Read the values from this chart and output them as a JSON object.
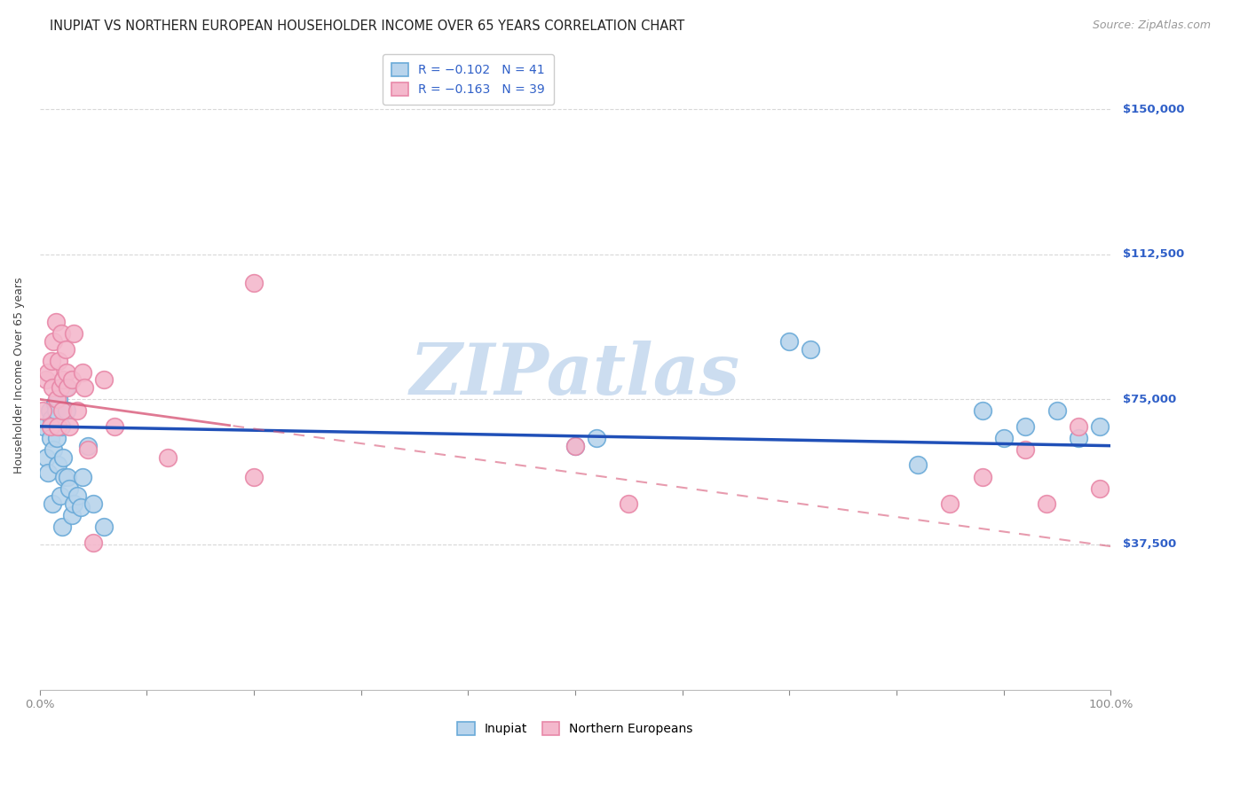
{
  "title": "INUPIAT VS NORTHERN EUROPEAN HOUSEHOLDER INCOME OVER 65 YEARS CORRELATION CHART",
  "source": "Source: ZipAtlas.com",
  "ylabel": "Householder Income Over 65 years",
  "xlim": [
    0,
    1.0
  ],
  "ylim": [
    0,
    162500
  ],
  "ytick_positions": [
    37500,
    75000,
    112500,
    150000
  ],
  "ytick_labels": [
    "$37,500",
    "$75,000",
    "$112,500",
    "$150,000"
  ],
  "inupiat_face_color": "#b8d4ec",
  "inupiat_edge_color": "#6aaad8",
  "northern_face_color": "#f4b8cc",
  "northern_edge_color": "#e888a8",
  "blue_line_color": "#2050b8",
  "pink_line_color": "#d85878",
  "grid_color": "#d8d8d8",
  "background_color": "#ffffff",
  "watermark": "ZIPatlas",
  "title_fontsize": 10.5,
  "source_fontsize": 9,
  "axis_label_fontsize": 9,
  "tick_fontsize": 9.5,
  "legend_fontsize": 10,
  "inupiat_x": [
    0.004,
    0.006,
    0.008,
    0.009,
    0.01,
    0.011,
    0.012,
    0.013,
    0.014,
    0.015,
    0.016,
    0.017,
    0.018,
    0.019,
    0.02,
    0.021,
    0.022,
    0.023,
    0.024,
    0.025,
    0.026,
    0.028,
    0.03,
    0.032,
    0.035,
    0.038,
    0.04,
    0.045,
    0.05,
    0.06,
    0.5,
    0.52,
    0.7,
    0.72,
    0.82,
    0.88,
    0.9,
    0.92,
    0.95,
    0.97,
    0.99
  ],
  "inupiat_y": [
    68000,
    60000,
    56000,
    72000,
    65000,
    70000,
    48000,
    62000,
    74000,
    72000,
    65000,
    58000,
    75000,
    50000,
    68000,
    42000,
    60000,
    55000,
    78000,
    72000,
    55000,
    52000,
    45000,
    48000,
    50000,
    47000,
    55000,
    63000,
    48000,
    42000,
    63000,
    65000,
    90000,
    88000,
    58000,
    72000,
    65000,
    68000,
    72000,
    65000,
    68000
  ],
  "northern_x": [
    0.003,
    0.006,
    0.008,
    0.01,
    0.011,
    0.012,
    0.013,
    0.015,
    0.016,
    0.017,
    0.018,
    0.019,
    0.02,
    0.021,
    0.022,
    0.024,
    0.025,
    0.026,
    0.028,
    0.03,
    0.032,
    0.035,
    0.04,
    0.042,
    0.045,
    0.05,
    0.06,
    0.07,
    0.12,
    0.2,
    0.5,
    0.55,
    0.2,
    0.85,
    0.88,
    0.92,
    0.94,
    0.97,
    0.99
  ],
  "northern_y": [
    72000,
    80000,
    82000,
    68000,
    85000,
    78000,
    90000,
    95000,
    75000,
    68000,
    85000,
    78000,
    92000,
    72000,
    80000,
    88000,
    82000,
    78000,
    68000,
    80000,
    92000,
    72000,
    82000,
    78000,
    62000,
    38000,
    80000,
    68000,
    60000,
    55000,
    63000,
    48000,
    105000,
    48000,
    55000,
    62000,
    48000,
    68000,
    52000
  ]
}
